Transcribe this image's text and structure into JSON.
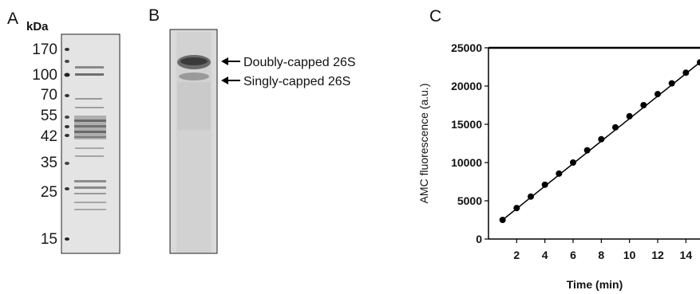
{
  "panels": {
    "a": {
      "letter": "A",
      "unit_label": "kDa",
      "marker_labels": [
        "170",
        "100",
        "70",
        "55",
        "42",
        "35",
        "25",
        "15"
      ]
    },
    "b": {
      "letter": "B",
      "arrow_labels": [
        "Doubly-capped 26S",
        "Singly-capped 26S"
      ]
    },
    "c": {
      "letter": "C"
    }
  },
  "chart_data": {
    "type": "scatter",
    "title": "",
    "xlabel": "Time (min)",
    "ylabel": "AMC fluorescence (a.u.)",
    "xlim": [
      0,
      15
    ],
    "ylim": [
      0,
      25000
    ],
    "x_ticks": [
      2,
      4,
      6,
      8,
      10,
      12,
      14
    ],
    "y_ticks": [
      0,
      5000,
      10000,
      15000,
      20000,
      25000
    ],
    "grid": false,
    "trendline": true,
    "series": [
      {
        "x": [
          1,
          2,
          3,
          4,
          5,
          6,
          7,
          8,
          9,
          10,
          11,
          12,
          13,
          14,
          15
        ],
        "y": [
          2500,
          4050,
          5550,
          7100,
          8550,
          10000,
          11600,
          13050,
          14600,
          16050,
          17500,
          18950,
          20350,
          21750,
          23100
        ]
      }
    ]
  }
}
